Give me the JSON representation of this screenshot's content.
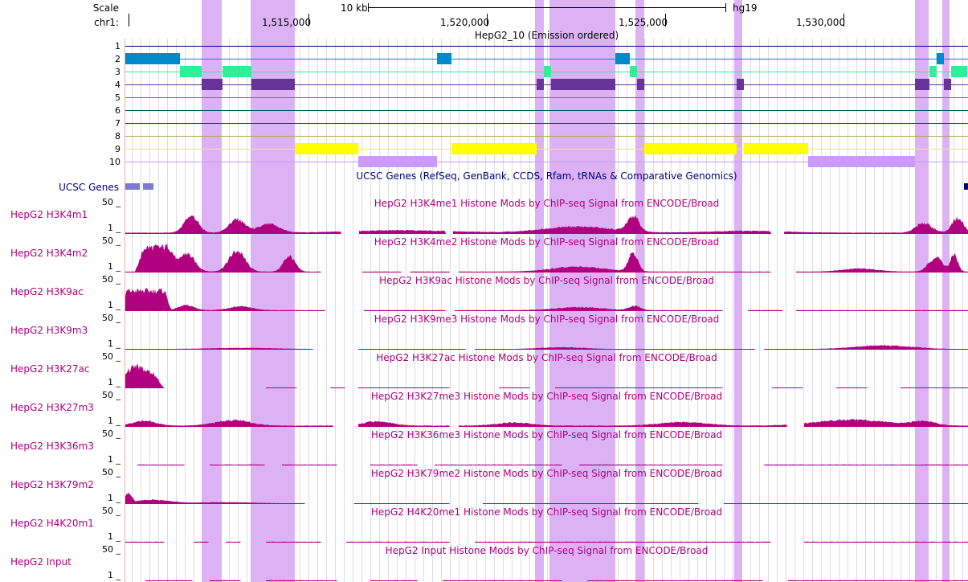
{
  "header": {
    "scale_label": "Scale",
    "chrom_label": "chr1:",
    "scale_bar_label": "10 kb",
    "assembly": "hg19",
    "positions": [
      "1,515,000",
      "1,520,000",
      "1,525,000",
      "1,530,000"
    ]
  },
  "chromhmm": {
    "title": "HepG2_10 (Emission ordered)",
    "states": [
      "1",
      "2",
      "3",
      "4",
      "5",
      "6",
      "7",
      "8",
      "9",
      "10"
    ],
    "state_colors": [
      "#00007f",
      "#0088cc",
      "#33ee99",
      "#663399",
      "#7f7f00",
      "#005555",
      "#7f0055",
      "#aaaa55",
      "#ffff00",
      "#cc99ff"
    ]
  },
  "genes": {
    "title": "UCSC Genes (RefSeq, GenBank, CCDS, Rfam, tRNAs & Comparative Genomics)",
    "label": "UCSC Genes"
  },
  "signal_tracks": [
    {
      "label": "HepG2 H3K4m1",
      "title": "HepG2 H3K4me1 Histone Mods by ChIP-seq Signal from ENCODE/Broad",
      "max": "50 _",
      "min": "1 _"
    },
    {
      "label": "HepG2 H3K4m2",
      "title": "HepG2 H3K4me2 Histone Mods by ChIP-seq Signal from ENCODE/Broad",
      "max": "50 _",
      "min": "1 _"
    },
    {
      "label": "HepG2 H3K9ac",
      "title": "HepG2 H3K9ac Histone Mods by ChIP-seq Signal from ENCODE/Broad",
      "max": "50 _",
      "min": "1 _"
    },
    {
      "label": "HepG2 H3K9m3",
      "title": "HepG2 H3K9me3 Histone Mods by ChIP-seq Signal from ENCODE/Broad",
      "max": "50 _",
      "min": "1 _"
    },
    {
      "label": "HepG2 H3K27ac",
      "title": "HepG2 H3K27ac Histone Mods by ChIP-seq Signal from ENCODE/Broad",
      "max": "50 _",
      "min": "1 _"
    },
    {
      "label": "HepG2 H3K27m3",
      "title": "HepG2 H3K27me3 Histone Mods by ChIP-seq Signal from ENCODE/Broad",
      "max": "50 _",
      "min": "1 _"
    },
    {
      "label": "HepG2 H3K36m3",
      "title": "HepG2 H3K36me3 Histone Mods by ChIP-seq Signal from ENCODE/Broad",
      "max": "50 _",
      "min": "1 _"
    },
    {
      "label": "HepG2 H3K79m2",
      "title": "HepG2 H3K79me2 Histone Mods by ChIP-seq Signal from ENCODE/Broad",
      "max": "50 _",
      "min": "1 _"
    },
    {
      "label": "HepG2 H4K20m1",
      "title": "HepG2 H4K20me1 Histone Mods by ChIP-seq Signal from ENCODE/Broad",
      "max": "50 _",
      "min": "1 _"
    },
    {
      "label": "HepG2 Input",
      "title": "HepG2 Input Histone Mods by ChIP-seq Signal from ENCODE/Broad",
      "max": "50 _",
      "min": "1 _"
    }
  ],
  "colors": {
    "signal": "#b0007f",
    "highlight": "#dcb2f5",
    "header_text": "#000000",
    "genes_title": "#000080"
  }
}
